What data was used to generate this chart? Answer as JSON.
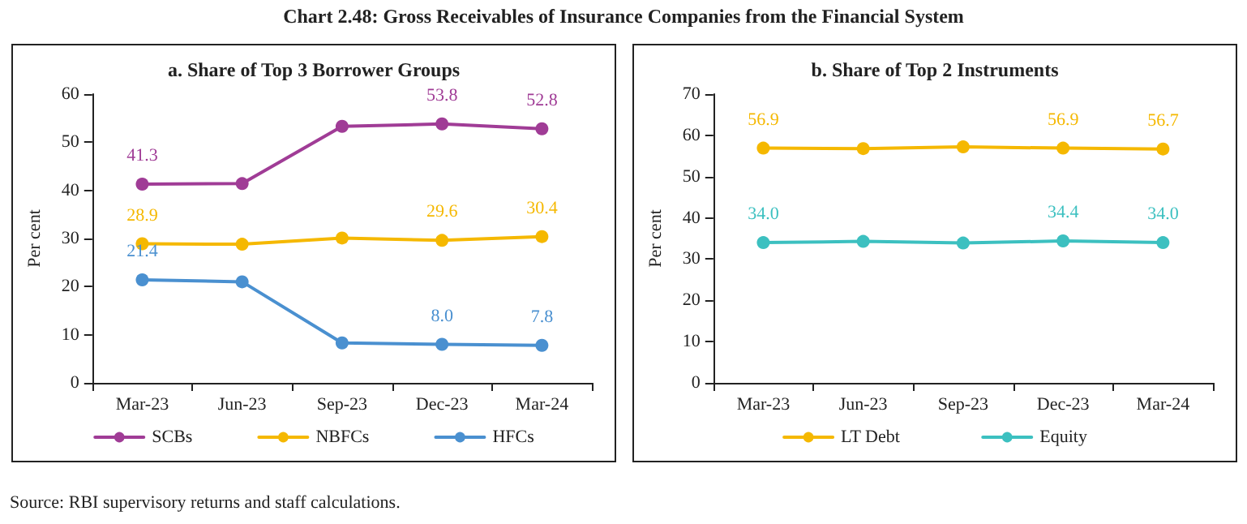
{
  "chart_data": [
    {
      "type": "line",
      "title": "Chart 2.48: Gross Receivables of Insurance Companies from the Financial System",
      "subtitle": "a. Share of Top 3 Borrower Groups",
      "ylabel": "Per cent",
      "categories": [
        "Mar-23",
        "Jun-23",
        "Sep-23",
        "Dec-23",
        "Mar-24"
      ],
      "series": [
        {
          "name": "SCBs",
          "color": "#a03c96",
          "values": [
            41.3,
            41.4,
            53.3,
            53.8,
            52.8
          ],
          "value_labels": [
            "41.3",
            null,
            null,
            "53.8",
            "52.8"
          ]
        },
        {
          "name": "NBFCs",
          "color": "#f5b800",
          "values": [
            28.9,
            28.8,
            30.1,
            29.6,
            30.4
          ],
          "value_labels": [
            "28.9",
            null,
            null,
            "29.6",
            "30.4"
          ]
        },
        {
          "name": "HFCs",
          "color": "#4a90d0",
          "values": [
            21.4,
            21.0,
            8.3,
            8.0,
            7.8
          ],
          "value_labels": [
            "21.4",
            null,
            null,
            "8.0",
            "7.8"
          ]
        }
      ],
      "ylim": [
        0,
        60
      ],
      "yticks": [
        0,
        10,
        20,
        30,
        40,
        50,
        60
      ],
      "grid": false,
      "legend": "bottom",
      "marker": "circle",
      "line_style": "solid",
      "annotations": [
        "Source: RBI supervisory returns and staff calculations."
      ]
    },
    {
      "type": "line",
      "title": "b. Share of Top 2 Instruments",
      "ylabel": "Per cent",
      "categories": [
        "Mar-23",
        "Jun-23",
        "Sep-23",
        "Dec-23",
        "Mar-24"
      ],
      "series": [
        {
          "name": "LT Debt",
          "color": "#f5b800",
          "values": [
            56.9,
            56.8,
            57.2,
            56.9,
            56.7
          ],
          "value_labels": [
            "56.9",
            null,
            null,
            "56.9",
            "56.7"
          ]
        },
        {
          "name": "Equity",
          "color": "#3cc0c0",
          "values": [
            34.0,
            34.3,
            33.9,
            34.4,
            34.0
          ],
          "value_labels": [
            "34.0",
            null,
            null,
            "34.4",
            "34.0"
          ]
        }
      ],
      "ylim": [
        0,
        70
      ],
      "yticks": [
        0,
        10,
        20,
        30,
        40,
        50,
        60,
        70
      ],
      "grid": false,
      "legend": "bottom",
      "marker": "circle",
      "line_style": "solid"
    }
  ]
}
